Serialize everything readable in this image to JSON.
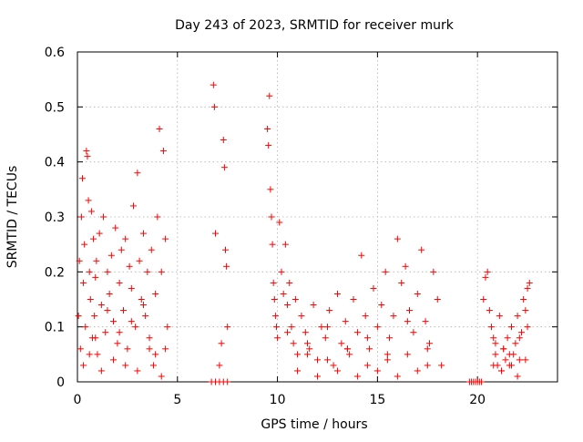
{
  "chart_data": {
    "type": "scatter",
    "title": "Day 243 of 2023, SRMTID for receiver murk",
    "xlabel": "GPS time / hours",
    "ylabel": "SRMTID / TECUs",
    "xlim": [
      0,
      24
    ],
    "ylim": [
      0,
      0.6
    ],
    "xticks": [
      0,
      5,
      10,
      15,
      20
    ],
    "yticks": [
      0,
      0.1,
      0.2,
      0.3,
      0.4,
      0.5,
      0.6
    ],
    "xtick_labels": [
      "0",
      "5",
      "10",
      "15",
      "20"
    ],
    "ytick_labels": [
      "0",
      "0.1",
      "0.2",
      "0.3",
      "0.4",
      "0.5",
      "0.6"
    ],
    "grid": true,
    "marker": "+",
    "series_color": "#ff0000",
    "series": [
      {
        "name": "SRMTID",
        "x": [
          0.05,
          0.1,
          0.15,
          0.2,
          0.25,
          0.3,
          0.35,
          0.4,
          0.45,
          0.5,
          0.55,
          0.6,
          0.65,
          0.7,
          0.75,
          0.8,
          0.85,
          0.9,
          0.95,
          1.0,
          1.1,
          1.2,
          1.3,
          1.4,
          1.5,
          1.6,
          1.7,
          1.8,
          1.9,
          2.0,
          2.1,
          2.2,
          2.3,
          2.4,
          2.5,
          2.6,
          2.7,
          2.8,
          2.9,
          3.0,
          3.1,
          3.2,
          3.3,
          3.4,
          3.5,
          3.6,
          3.7,
          3.8,
          3.9,
          4.0,
          4.1,
          4.2,
          4.3,
          4.4,
          4.5,
          0.3,
          0.6,
          0.9,
          1.2,
          1.5,
          1.8,
          2.1,
          2.4,
          2.7,
          3.0,
          3.3,
          3.6,
          3.9,
          4.2,
          4.4,
          6.8,
          6.85,
          6.9,
          7.3,
          7.35,
          7.4,
          7.45,
          7.5,
          7.2,
          7.1,
          9.5,
          9.55,
          9.6,
          9.65,
          9.7,
          9.75,
          9.8,
          9.85,
          9.9,
          9.95,
          10.0,
          10.1,
          10.2,
          10.3,
          10.4,
          10.5,
          10.6,
          10.7,
          10.8,
          10.9,
          11.0,
          11.2,
          11.4,
          11.6,
          11.8,
          12.0,
          12.2,
          12.4,
          12.6,
          12.8,
          13.0,
          13.2,
          13.4,
          13.6,
          13.8,
          14.0,
          14.2,
          14.4,
          14.6,
          14.8,
          15.0,
          15.2,
          15.4,
          15.6,
          15.8,
          16.0,
          16.2,
          16.4,
          16.6,
          16.8,
          17.0,
          17.2,
          17.4,
          17.6,
          17.8,
          18.0,
          18.2,
          11.0,
          11.5,
          12.0,
          12.5,
          13.0,
          13.5,
          14.0,
          14.5,
          15.0,
          15.5,
          16.0,
          16.5,
          17.0,
          17.5,
          10.5,
          11.5,
          12.5,
          13.5,
          14.5,
          15.5,
          16.5,
          17.5,
          20.3,
          20.4,
          20.5,
          20.6,
          20.7,
          20.8,
          20.9,
          21.0,
          21.1,
          21.2,
          21.3,
          21.4,
          21.5,
          21.6,
          21.7,
          21.8,
          21.9,
          22.0,
          22.1,
          22.2,
          22.3,
          22.4,
          22.5,
          22.6,
          20.8,
          21.2,
          21.6,
          22.0,
          22.4,
          20.9,
          21.3,
          21.7,
          22.1,
          22.5,
          6.7,
          6.9,
          7.1,
          7.3,
          7.5,
          19.6,
          19.7,
          19.8,
          19.9,
          20.0,
          20.1,
          20.2
        ],
        "y": [
          0.12,
          0.22,
          0.06,
          0.3,
          0.37,
          0.18,
          0.25,
          0.1,
          0.42,
          0.41,
          0.33,
          0.2,
          0.15,
          0.31,
          0.08,
          0.26,
          0.12,
          0.19,
          0.22,
          0.05,
          0.27,
          0.14,
          0.3,
          0.09,
          0.2,
          0.16,
          0.23,
          0.11,
          0.28,
          0.07,
          0.18,
          0.24,
          0.13,
          0.26,
          0.06,
          0.21,
          0.17,
          0.32,
          0.1,
          0.38,
          0.22,
          0.15,
          0.27,
          0.12,
          0.2,
          0.08,
          0.24,
          0.03,
          0.16,
          0.3,
          0.46,
          0.2,
          0.42,
          0.26,
          0.1,
          0.03,
          0.05,
          0.08,
          0.02,
          0.13,
          0.04,
          0.09,
          0.03,
          0.11,
          0.02,
          0.14,
          0.06,
          0.05,
          0.01,
          0.06,
          0.54,
          0.5,
          0.27,
          0.44,
          0.39,
          0.24,
          0.21,
          0.1,
          0.07,
          0.03,
          0.46,
          0.43,
          0.52,
          0.35,
          0.3,
          0.25,
          0.18,
          0.15,
          0.12,
          0.1,
          0.08,
          0.29,
          0.2,
          0.16,
          0.25,
          0.14,
          0.18,
          0.1,
          0.07,
          0.15,
          0.05,
          0.12,
          0.09,
          0.06,
          0.14,
          0.04,
          0.1,
          0.08,
          0.13,
          0.03,
          0.16,
          0.07,
          0.11,
          0.05,
          0.15,
          0.09,
          0.23,
          0.12,
          0.06,
          0.17,
          0.1,
          0.14,
          0.2,
          0.08,
          0.12,
          0.26,
          0.18,
          0.21,
          0.13,
          0.09,
          0.16,
          0.24,
          0.11,
          0.07,
          0.2,
          0.15,
          0.03,
          0.02,
          0.05,
          0.01,
          0.04,
          0.02,
          0.06,
          0.01,
          0.03,
          0.02,
          0.04,
          0.01,
          0.05,
          0.02,
          0.03,
          0.09,
          0.07,
          0.1,
          0.06,
          0.08,
          0.05,
          0.11,
          0.06,
          0.15,
          0.19,
          0.2,
          0.13,
          0.1,
          0.08,
          0.05,
          0.03,
          0.12,
          0.02,
          0.06,
          0.04,
          0.08,
          0.03,
          0.1,
          0.05,
          0.07,
          0.12,
          0.04,
          0.09,
          0.15,
          0.13,
          0.17,
          0.18,
          0.03,
          0.02,
          0.05,
          0.01,
          0.04,
          0.07,
          0.06,
          0.03,
          0.08,
          0.1,
          0.0,
          0.0,
          0.0,
          0.0,
          0.0,
          0.0,
          0.0,
          0.0,
          0.0,
          0.0,
          0.0,
          0.0
        ]
      }
    ]
  }
}
